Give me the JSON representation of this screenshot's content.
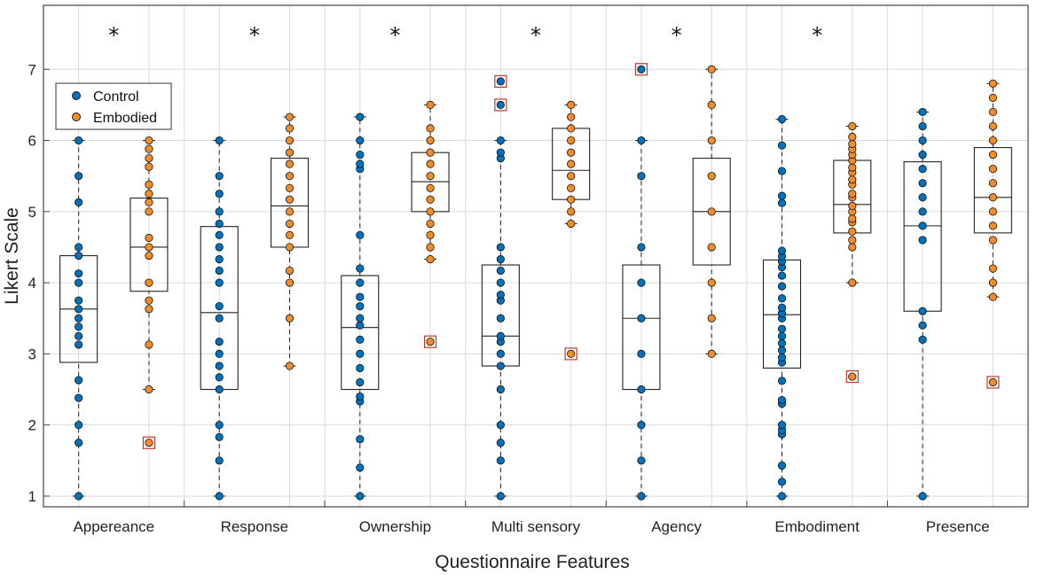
{
  "chart_data": {
    "type": "box",
    "title": "",
    "xlabel": "Questionnaire Features",
    "ylabel": "Likert Scale",
    "ylim": [
      0.85,
      7.9
    ],
    "yticks": [
      1,
      2,
      3,
      4,
      5,
      6,
      7
    ],
    "grid": true,
    "legend_position": "top-left",
    "significance_marker": "*",
    "series": [
      {
        "name": "Control",
        "color": "#0072BD"
      },
      {
        "name": "Embodied",
        "color": "#F28C28"
      }
    ],
    "outlier_marker_color": "#C0392B",
    "categories": [
      {
        "label": "Appereance",
        "significant": true,
        "control": {
          "whisker_low": 1,
          "q1": 2.88,
          "median": 3.63,
          "q3": 4.38,
          "whisker_high": 6,
          "points": [
            1,
            1.75,
            2,
            2.38,
            2.63,
            3.13,
            3.25,
            3.38,
            3.5,
            3.63,
            3.75,
            4,
            4.13,
            4.38,
            4.5,
            5.13,
            5.5,
            6
          ],
          "outliers": []
        },
        "embodied": {
          "whisker_low": 2.5,
          "q1": 3.88,
          "median": 4.5,
          "q3": 5.19,
          "whisker_high": 6,
          "points": [
            2.5,
            3.13,
            3.63,
            3.75,
            4,
            4.38,
            4.5,
            4.63,
            5,
            5.13,
            5.25,
            5.38,
            5.63,
            5.75,
            5.88,
            6
          ],
          "outliers": [
            1.75
          ]
        }
      },
      {
        "label": "Response",
        "significant": true,
        "control": {
          "whisker_low": 1,
          "q1": 2.5,
          "median": 3.58,
          "q3": 4.79,
          "whisker_high": 6,
          "points": [
            1,
            1.5,
            1.83,
            2,
            2.5,
            2.67,
            2.83,
            3,
            3.17,
            3.5,
            3.67,
            4,
            4.17,
            4.33,
            4.5,
            4.67,
            4.83,
            5,
            5.25,
            5.5,
            6
          ],
          "outliers": []
        },
        "embodied": {
          "whisker_low": 2.83,
          "q1": 4.5,
          "median": 5.08,
          "q3": 5.75,
          "whisker_high": 6.33,
          "points": [
            2.83,
            3.5,
            4,
            4.17,
            4.5,
            4.67,
            4.83,
            5,
            5.17,
            5.33,
            5.5,
            5.67,
            5.83,
            6,
            6.17,
            6.33
          ],
          "outliers": []
        }
      },
      {
        "label": "Ownership",
        "significant": true,
        "control": {
          "whisker_low": 1,
          "q1": 2.5,
          "median": 3.37,
          "q3": 4.1,
          "whisker_high": 6.33,
          "points": [
            1,
            1.4,
            1.8,
            2.33,
            2.4,
            2.6,
            2.8,
            3,
            3.2,
            3.4,
            3.5,
            3.67,
            3.8,
            4,
            4.2,
            4.67,
            5.6,
            5.67,
            5.8,
            6,
            6.33
          ],
          "outliers": []
        },
        "embodied": {
          "whisker_low": 4.33,
          "q1": 5,
          "median": 5.42,
          "q3": 5.83,
          "whisker_high": 6.5,
          "points": [
            4.33,
            4.5,
            4.67,
            4.83,
            5,
            5.17,
            5.33,
            5.5,
            5.67,
            5.83,
            6,
            6.17,
            6.5
          ],
          "outliers": [
            3.17
          ]
        }
      },
      {
        "label": "Multi sensory",
        "significant": true,
        "control": {
          "whisker_low": 1,
          "q1": 2.83,
          "median": 3.25,
          "q3": 4.25,
          "whisker_high": 6,
          "points": [
            1,
            1.5,
            1.75,
            2,
            2.5,
            2.83,
            3,
            3.17,
            3.25,
            3.5,
            3.75,
            3.83,
            4,
            4.17,
            4.33,
            4.5,
            5.75,
            5.83,
            6
          ],
          "outliers": [
            6.5,
            6.83
          ]
        },
        "embodied": {
          "whisker_low": 4.83,
          "q1": 5.17,
          "median": 5.58,
          "q3": 6.17,
          "whisker_high": 6.5,
          "points": [
            4.83,
            5,
            5.17,
            5.33,
            5.5,
            5.67,
            5.83,
            6,
            6.17,
            6.33,
            6.5
          ],
          "outliers": [
            3
          ]
        }
      },
      {
        "label": "Agency",
        "significant": true,
        "control": {
          "whisker_low": 1,
          "q1": 2.5,
          "median": 3.5,
          "q3": 4.25,
          "whisker_high": 6,
          "points": [
            1,
            1.5,
            2,
            2.5,
            3,
            3.5,
            4,
            4.5,
            5.5,
            6
          ],
          "outliers": [
            7
          ]
        },
        "embodied": {
          "whisker_low": 3,
          "q1": 4.25,
          "median": 5,
          "q3": 5.75,
          "whisker_high": 7,
          "points": [
            3,
            3.5,
            4,
            4.5,
            5,
            5.5,
            6,
            6.5,
            7
          ],
          "outliers": []
        }
      },
      {
        "label": "Embodiment",
        "significant": true,
        "control": {
          "whisker_low": 1,
          "q1": 2.8,
          "median": 3.55,
          "q3": 4.32,
          "whisker_high": 6.3,
          "points": [
            1,
            1.2,
            1.43,
            1.87,
            1.93,
            2,
            2.3,
            2.35,
            2.62,
            2.88,
            2.95,
            3.05,
            3.15,
            3.25,
            3.35,
            3.5,
            3.57,
            3.65,
            3.78,
            3.95,
            4.1,
            4.22,
            4.3,
            4.37,
            4.45,
            5.12,
            5.22,
            5.57,
            5.93,
            6.3
          ],
          "outliers": []
        },
        "embodied": {
          "whisker_low": 4,
          "q1": 4.7,
          "median": 5.1,
          "q3": 5.72,
          "whisker_high": 6.2,
          "points": [
            4,
            4.5,
            4.6,
            4.72,
            4.85,
            4.9,
            5,
            5.08,
            5.2,
            5.25,
            5.38,
            5.45,
            5.55,
            5.62,
            5.72,
            5.8,
            5.88,
            5.95,
            6.05,
            6.2
          ],
          "outliers": [
            2.68
          ]
        }
      },
      {
        "label": "Presence",
        "significant": false,
        "control": {
          "whisker_low": 1,
          "q1": 3.6,
          "median": 4.8,
          "q3": 5.7,
          "whisker_high": 6.4,
          "points": [
            1,
            3.2,
            3.4,
            3.6,
            4.6,
            4.8,
            5,
            5.2,
            5.4,
            5.6,
            5.8,
            6,
            6.2,
            6.4
          ],
          "outliers": []
        },
        "embodied": {
          "whisker_low": 3.8,
          "q1": 4.7,
          "median": 5.2,
          "q3": 5.9,
          "whisker_high": 6.8,
          "points": [
            3.8,
            4,
            4.2,
            4.6,
            4.8,
            5,
            5.2,
            5.4,
            5.6,
            5.8,
            6,
            6.2,
            6.4,
            6.6,
            6.8
          ],
          "outliers": [
            2.6
          ]
        }
      }
    ]
  }
}
